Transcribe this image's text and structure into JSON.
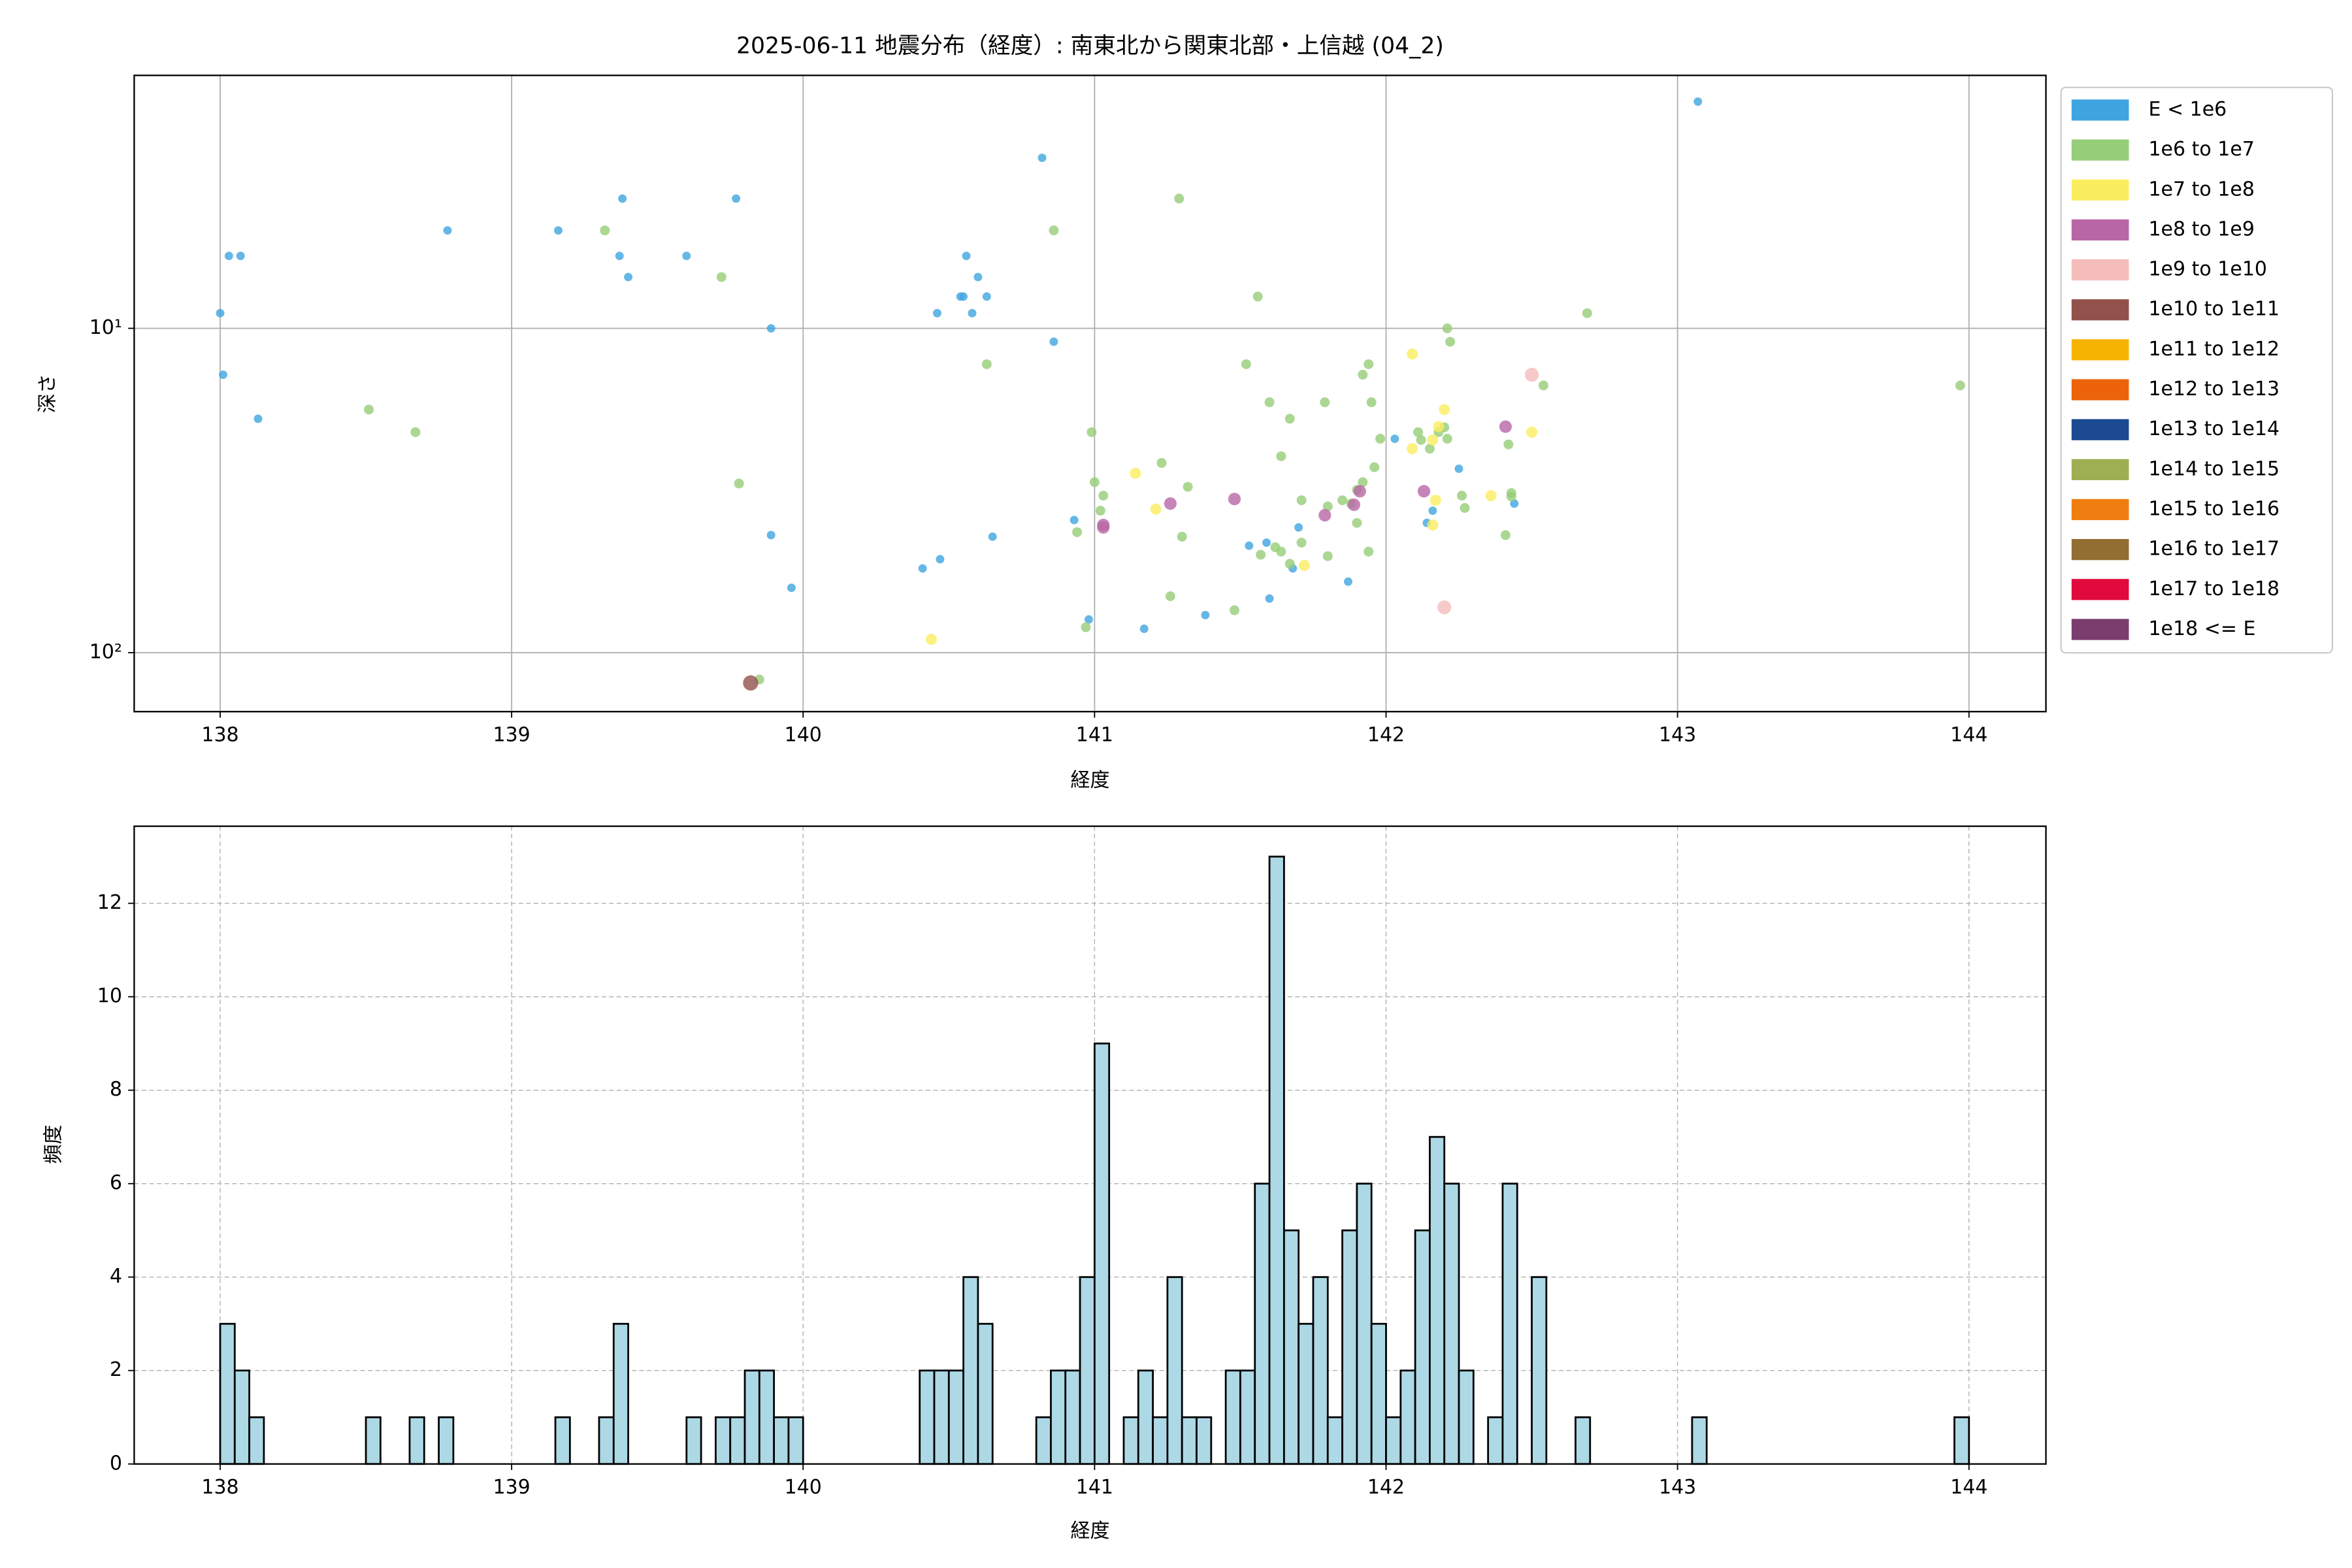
{
  "chart_data": [
    {
      "type": "scatter",
      "title": "2025-06-11 地震分布（経度）: 南東北から関東北部・上信越 (04_2)",
      "xlabel": "経度",
      "ylabel": "深さ",
      "xlim": [
        137.705,
        144.264
      ],
      "ylim": [
        1.66,
        152
      ],
      "yscale": "log",
      "invert_y": true,
      "xticks": [
        138,
        139,
        140,
        141,
        142,
        143,
        144
      ],
      "yticks": [
        {
          "value": 10,
          "label": "10¹"
        },
        {
          "value": 100,
          "label": "10²"
        }
      ],
      "grid": true,
      "legend": "outside right",
      "series": [
        {
          "name": "E < 1e6",
          "color": "#3ea5e0",
          "x": [
            138.0,
            138.01,
            138.03,
            138.07,
            138.13,
            138.78,
            139.16,
            139.38,
            139.37,
            139.4,
            139.6,
            139.77,
            139.89,
            139.89,
            139.96,
            140.41,
            140.47,
            140.46,
            140.54,
            140.56,
            140.55,
            140.6,
            140.58,
            140.63,
            140.65,
            140.82,
            140.86,
            140.93,
            140.98,
            141.17,
            141.38,
            141.53,
            141.59,
            141.6,
            141.68,
            141.7,
            141.87,
            142.03,
            142.25,
            142.14,
            142.16,
            142.44,
            143.07
          ],
          "y": [
            8.98,
            13.9,
            5.98,
            5.98,
            19.0,
            4.99,
            4.99,
            3.98,
            5.98,
            6.95,
            5.98,
            3.98,
            10,
            43.4,
            63.1,
            55.0,
            51.5,
            8.98,
            7.98,
            5.98,
            7.98,
            6.95,
            8.98,
            7.98,
            43.9,
            2.98,
            11.0,
            39.0,
            79.0,
            84.4,
            76.6,
            46.8,
            45.8,
            68.1,
            55.0,
            41.1,
            60.4,
            21.9,
            27.1,
            39.8,
            36.5,
            34.7,
            2.0
          ]
        },
        {
          "name": "1e6 to 1e7",
          "color": "#96cd78",
          "x": [
            138.51,
            138.67,
            139.32,
            139.72,
            139.78,
            139.85,
            140.63,
            140.86,
            140.94,
            140.97,
            140.99,
            141.0,
            141.02,
            141.03,
            141.23,
            141.26,
            141.29,
            141.3,
            141.32,
            141.48,
            141.52,
            141.56,
            141.57,
            141.6,
            141.62,
            141.64,
            141.64,
            141.67,
            141.67,
            141.71,
            141.71,
            141.79,
            141.8,
            141.8,
            141.85,
            141.88,
            141.9,
            141.9,
            141.92,
            141.92,
            141.94,
            141.94,
            141.95,
            141.96,
            141.98,
            142.11,
            142.12,
            142.15,
            142.18,
            142.2,
            142.21,
            142.21,
            142.22,
            142.26,
            142.27,
            142.42,
            142.43,
            142.43,
            142.41,
            142.54,
            142.69,
            143.97
          ],
          "y": [
            17.8,
            20.9,
            4.99,
            6.95,
            30.1,
            121,
            12.9,
            4.99,
            42.5,
            83.5,
            20.9,
            29.8,
            36.5,
            32.8,
            26.0,
            67.0,
            3.98,
            43.9,
            30.8,
            74.0,
            12.9,
            7.98,
            49.9,
            16.9,
            47.3,
            48.8,
            24.8,
            53.2,
            19.0,
            45.8,
            33.9,
            16.9,
            50.4,
            35.4,
            33.9,
            34.7,
            39.8,
            31.5,
            29.8,
            13.9,
            48.8,
            12.9,
            16.9,
            26.8,
            21.9,
            20.9,
            22.1,
            23.5,
            20.9,
            20.2,
            21.9,
            10,
            11.0,
            32.8,
            35.8,
            22.8,
            32.2,
            33.0,
            43.4,
            15.0,
            8.98,
            15.0
          ]
        },
        {
          "name": "1e7 to 1e8",
          "color": "#fbed60",
          "x": [
            142.09,
            141.14,
            141.21,
            142.09,
            142.16,
            142.18,
            142.2,
            142.17,
            142.16,
            142.36,
            142.5,
            141.72,
            140.44
          ],
          "y": [
            12.0,
            28.0,
            36.1,
            23.5,
            22.1,
            20.1,
            17.8,
            33.9,
            40.4,
            32.8,
            20.9,
            53.8,
            91.0
          ]
        },
        {
          "name": "1e8 to 1e9",
          "color": "#b866a6",
          "x": [
            141.03,
            141.03,
            141.26,
            141.48,
            141.79,
            141.89,
            141.91,
            142.13,
            142.41
          ],
          "y": [
            41.1,
            40.4,
            34.7,
            33.6,
            37.7,
            35.0,
            31.8,
            31.8,
            20.1
          ]
        },
        {
          "name": "1e9 to 1e10",
          "color": "#f4bdba",
          "x": [
            142.5,
            142.2
          ],
          "y": [
            13.9,
            72.5
          ]
        },
        {
          "name": "1e10 to 1e11",
          "color": "#93514b",
          "x": [
            139.82
          ],
          "y": [
            124
          ]
        },
        {
          "name": "1e11 to 1e12",
          "color": "#f6b400",
          "x": [],
          "y": []
        },
        {
          "name": "1e12 to 1e13",
          "color": "#ec6309",
          "x": [],
          "y": []
        },
        {
          "name": "1e13 to 1e14",
          "color": "#1b4a92",
          "x": [],
          "y": []
        },
        {
          "name": "1e14 to 1e15",
          "color": "#9daf52",
          "x": [],
          "y": []
        },
        {
          "name": "1e15 to 1e16",
          "color": "#f07d10",
          "x": [],
          "y": []
        },
        {
          "name": "1e16 to 1e17",
          "color": "#936e32",
          "x": [],
          "y": []
        },
        {
          "name": "1e17 to 1e18",
          "color": "#e00a3c",
          "x": [],
          "y": []
        },
        {
          "name": "1e18 <= E",
          "color": "#7a3d6e",
          "x": [],
          "y": []
        }
      ]
    },
    {
      "type": "histogram",
      "xlabel": "経度",
      "ylabel": "頻度",
      "xlim": [
        137.705,
        144.264
      ],
      "ylim": [
        0,
        13.65
      ],
      "xticks": [
        138,
        139,
        140,
        141,
        142,
        143,
        144
      ],
      "yticks": [
        0,
        2,
        4,
        6,
        8,
        10,
        12
      ],
      "grid": "dashed",
      "color": "#add8e6",
      "edgecolor": "#000000",
      "bins": [
        138,
        138.05,
        138.1,
        138.15,
        138.2,
        138.25,
        138.3,
        138.35,
        138.4,
        138.45,
        138.5,
        138.55,
        138.6,
        138.65,
        138.7,
        138.75,
        138.8,
        138.85,
        138.9,
        138.95,
        139,
        139.05,
        139.1,
        139.15,
        139.2,
        139.25,
        139.3,
        139.35,
        139.4,
        139.45,
        139.5,
        139.55,
        139.6,
        139.65,
        139.7,
        139.75,
        139.8,
        139.85,
        139.9,
        139.95,
        140,
        140.05,
        140.1,
        140.15,
        140.2,
        140.25,
        140.3,
        140.35,
        140.4,
        140.45,
        140.5,
        140.55,
        140.6,
        140.65,
        140.7,
        140.75,
        140.8,
        140.85,
        140.9,
        140.95,
        141,
        141.05,
        141.1,
        141.15,
        141.2,
        141.25,
        141.3,
        141.35,
        141.4,
        141.45,
        141.5,
        141.55,
        141.6,
        141.65,
        141.7,
        141.75,
        141.8,
        141.85,
        141.9,
        141.95,
        142,
        142.05,
        142.1,
        142.15,
        142.2,
        142.25,
        142.3,
        142.35,
        142.4,
        142.45,
        142.5,
        142.55,
        142.6,
        142.65,
        142.7,
        142.75,
        142.8,
        142.85,
        142.9,
        142.95,
        143,
        143.05,
        143.1,
        143.15,
        143.2,
        143.25,
        143.3,
        143.35,
        143.4,
        143.45,
        143.5,
        143.55,
        143.6,
        143.65,
        143.7,
        143.75,
        143.8,
        143.85,
        143.9,
        143.95,
        144
      ],
      "counts": [
        3,
        2,
        1,
        0,
        0,
        0,
        0,
        0,
        0,
        0,
        1,
        0,
        0,
        1,
        0,
        1,
        0,
        0,
        0,
        0,
        0,
        0,
        0,
        1,
        0,
        0,
        1,
        3,
        0,
        0,
        0,
        0,
        1,
        0,
        1,
        1,
        2,
        2,
        1,
        1,
        0,
        0,
        0,
        0,
        0,
        0,
        0,
        0,
        2,
        2,
        2,
        4,
        3,
        0,
        0,
        0,
        1,
        2,
        2,
        4,
        9,
        0,
        1,
        2,
        1,
        4,
        1,
        1,
        0,
        2,
        2,
        6,
        13,
        5,
        3,
        4,
        1,
        5,
        6,
        3,
        1,
        2,
        5,
        7,
        6,
        2,
        0,
        1,
        6,
        0,
        4,
        0,
        0,
        1,
        0,
        0,
        0,
        0,
        0,
        0,
        0,
        1,
        0,
        0,
        0,
        0,
        0,
        0,
        0,
        0,
        0,
        0,
        0,
        0,
        0,
        0,
        0,
        0,
        0,
        1
      ]
    }
  ]
}
